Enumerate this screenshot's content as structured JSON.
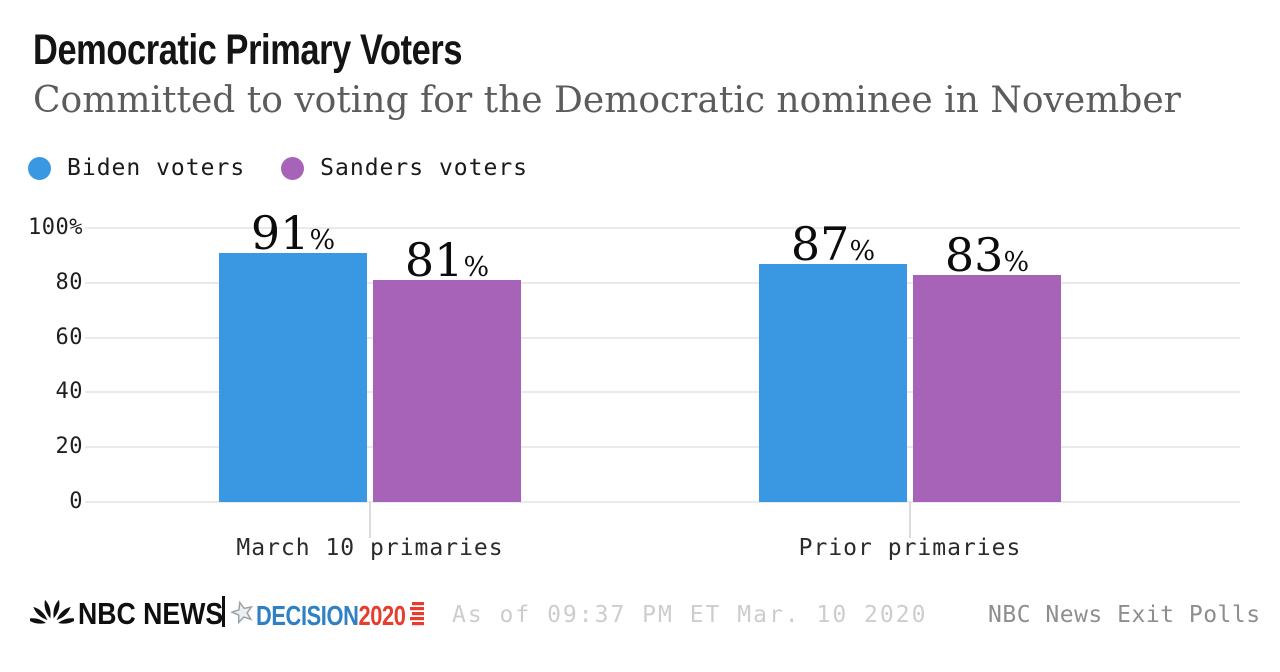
{
  "header": {
    "title": "Democratic Primary Voters",
    "subtitle": "Committed to voting for the Democratic nominee in November"
  },
  "chart_data": {
    "type": "bar",
    "categories": [
      "March 10 primaries",
      "Prior primaries"
    ],
    "series": [
      {
        "name": "Biden voters",
        "color": "#3a98e3",
        "values": [
          91,
          87
        ]
      },
      {
        "name": "Sanders voters",
        "color": "#a763b7",
        "values": [
          81,
          83
        ]
      }
    ],
    "value_suffix": "%",
    "data_labels": true,
    "ylim": [
      0,
      100
    ],
    "yticks": [
      {
        "value": 100,
        "label": "100%"
      },
      {
        "value": 80,
        "label": "80"
      },
      {
        "value": 60,
        "label": "60"
      },
      {
        "value": 40,
        "label": "40"
      },
      {
        "value": 20,
        "label": "20"
      },
      {
        "value": 0,
        "label": "0"
      }
    ],
    "grid": true,
    "legend_position": "top-left"
  },
  "footer": {
    "brand": "NBC NEWS",
    "decision_word": "DECISION",
    "decision_year": "2020",
    "as_of": "As of 09:37 PM ET Mar. 10 2020",
    "source": "NBC News Exit Polls"
  },
  "colors": {
    "biden_blue": "#3a98e3",
    "sanders_purple": "#a763b7",
    "gridline": "#ebe9ed",
    "decision_blue": "#2f80c5",
    "decision_red": "#e73c2e",
    "title_text": "#141414",
    "subtitle_text": "#5c5c5c",
    "as_of_text": "#cdcdcd",
    "source_text": "#8e8e8e"
  }
}
